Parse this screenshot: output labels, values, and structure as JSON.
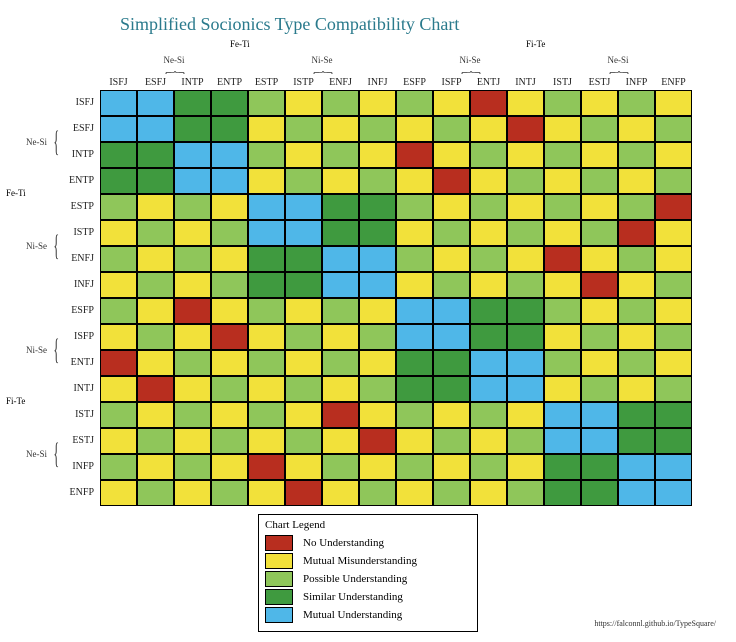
{
  "title": "Simplified Socionics Type Compatibility Chart",
  "source_url": "https://falconnl.github.io/TypeSquare/",
  "colors": {
    "no": "#b82e1f",
    "mutualM": "#f2e13a",
    "possible": "#8fc65a",
    "similar": "#3f9a3f",
    "mutualU": "#4fb7e8",
    "title": "#2a7a8c",
    "border": "#000000",
    "bg": "#ffffff"
  },
  "cell_size": {
    "w": 37,
    "h": 26
  },
  "types": [
    "ISFJ",
    "ESFJ",
    "INTP",
    "ENTP",
    "ESTP",
    "ISTP",
    "ENFJ",
    "INFJ",
    "ESFP",
    "ISFP",
    "ENTJ",
    "INTJ",
    "ISTJ",
    "ESTJ",
    "INFP",
    "ENFP"
  ],
  "groups": {
    "inner_label": [
      "Ne-Si",
      "Ni-Se",
      "Ni-Se",
      "Ne-Si"
    ],
    "outer_label": [
      "Fe-Ti",
      "Fi-Te"
    ]
  },
  "legend": {
    "title": "Chart Legend",
    "items": [
      {
        "key": "no",
        "label": "No Understanding"
      },
      {
        "key": "mutualM",
        "label": "Mutual Misunderstanding"
      },
      {
        "key": "possible",
        "label": "Possible Understanding"
      },
      {
        "key": "similar",
        "label": "Similar Understanding"
      },
      {
        "key": "mutualU",
        "label": "Mutual Understanding"
      }
    ]
  },
  "matrix_key": {
    "0": "no",
    "1": "mutualM",
    "2": "possible",
    "3": "similar",
    "4": "mutualU"
  },
  "matrix": [
    [
      4,
      4,
      3,
      3,
      2,
      1,
      2,
      1,
      2,
      1,
      0,
      1,
      2,
      1,
      2,
      1
    ],
    [
      4,
      4,
      3,
      3,
      1,
      2,
      1,
      2,
      1,
      2,
      1,
      0,
      1,
      2,
      1,
      2
    ],
    [
      3,
      3,
      4,
      4,
      2,
      1,
      2,
      1,
      0,
      1,
      2,
      1,
      2,
      1,
      2,
      1
    ],
    [
      3,
      3,
      4,
      4,
      1,
      2,
      1,
      2,
      1,
      0,
      1,
      2,
      1,
      2,
      1,
      2
    ],
    [
      2,
      1,
      2,
      1,
      4,
      4,
      3,
      3,
      2,
      1,
      2,
      1,
      2,
      1,
      2,
      0
    ],
    [
      1,
      2,
      1,
      2,
      4,
      4,
      3,
      3,
      1,
      2,
      1,
      2,
      1,
      2,
      0,
      1
    ],
    [
      2,
      1,
      2,
      1,
      3,
      3,
      4,
      4,
      2,
      1,
      2,
      1,
      0,
      1,
      2,
      1
    ],
    [
      1,
      2,
      1,
      2,
      3,
      3,
      4,
      4,
      1,
      2,
      1,
      2,
      1,
      0,
      1,
      2
    ],
    [
      2,
      1,
      0,
      1,
      2,
      1,
      2,
      1,
      4,
      4,
      3,
      3,
      2,
      1,
      2,
      1
    ],
    [
      1,
      2,
      1,
      0,
      1,
      2,
      1,
      2,
      4,
      4,
      3,
      3,
      1,
      2,
      1,
      2
    ],
    [
      0,
      1,
      2,
      1,
      2,
      1,
      2,
      1,
      3,
      3,
      4,
      4,
      2,
      1,
      2,
      1
    ],
    [
      1,
      0,
      1,
      2,
      1,
      2,
      1,
      2,
      3,
      3,
      4,
      4,
      1,
      2,
      1,
      2
    ],
    [
      2,
      1,
      2,
      1,
      2,
      1,
      0,
      1,
      2,
      1,
      2,
      1,
      4,
      4,
      3,
      3
    ],
    [
      1,
      2,
      1,
      2,
      1,
      2,
      1,
      0,
      1,
      2,
      1,
      2,
      4,
      4,
      3,
      3
    ],
    [
      2,
      1,
      2,
      1,
      0,
      1,
      2,
      1,
      2,
      1,
      2,
      1,
      3,
      3,
      4,
      4
    ],
    [
      1,
      2,
      1,
      2,
      1,
      0,
      1,
      2,
      1,
      2,
      1,
      2,
      3,
      3,
      4,
      4
    ]
  ]
}
